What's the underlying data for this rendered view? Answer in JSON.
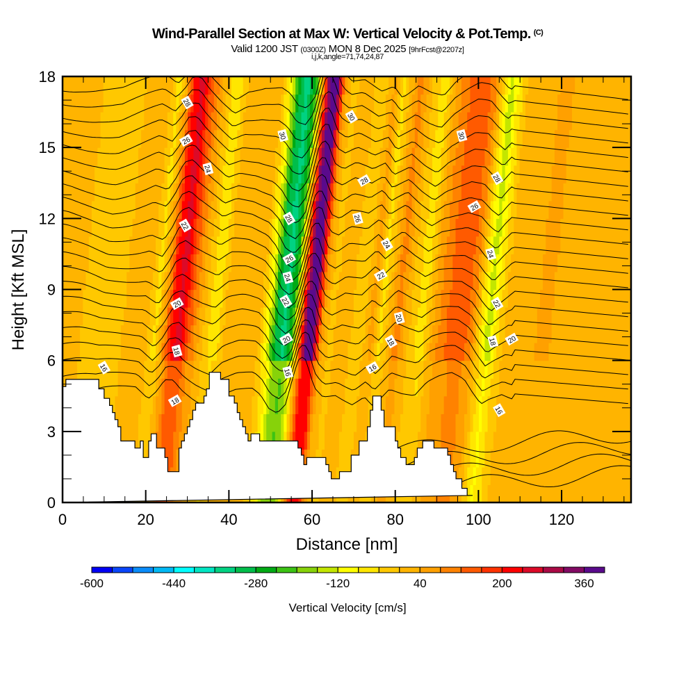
{
  "header": {
    "title": "Wind-Parallel Section at Max W: Vertical Velocity & Pot.Temp.",
    "copyright": "(C)",
    "valid_prefix": "Valid 1200 JST",
    "valid_utc": "(0300Z)",
    "valid_date": "MON 8 Dec 2025",
    "forecast": "[9hrFcst@2207z]",
    "indices": "i,j,k,angle=71,74,24,87"
  },
  "chart_data": {
    "type": "heatmap",
    "title": "Wind-Parallel Section at Max W: Vertical Velocity & Pot.Temp.",
    "xlabel": "Distance [nm]",
    "ylabel": "Height [Kft MSL]",
    "xlim": [
      0,
      136.7
    ],
    "ylim": [
      0,
      18
    ],
    "x_ticks": [
      0,
      20,
      40,
      60,
      80,
      100,
      120
    ],
    "x_minor_step": 5,
    "y_ticks": [
      0,
      3,
      6,
      9,
      12,
      15,
      18
    ],
    "y_minor_step": 1,
    "grid": false,
    "colorbar": {
      "title": "Vertical Velocity [cm/s]",
      "min": -600,
      "step": 40,
      "tick_labels": [
        -600,
        -440,
        -280,
        -120,
        40,
        200,
        360
      ],
      "colors": [
        "#0000f5",
        "#0a46fa",
        "#0a8cfa",
        "#00b9f5",
        "#00ffff",
        "#00e6c3",
        "#00d282",
        "#00be4b",
        "#00aa14",
        "#3cc314",
        "#87d20a",
        "#c3e600",
        "#ffff00",
        "#ffe600",
        "#ffc800",
        "#ffb400",
        "#ffa000",
        "#ff8200",
        "#ff5a00",
        "#ff3200",
        "#ff0000",
        "#dc0a28",
        "#aa0a46",
        "#820a64",
        "#5a0a8c"
      ]
    },
    "vertical_velocity_bands": {
      "description": "approximate w (cm/s) along distance, mid-levels",
      "x_nm": [
        0,
        5,
        10,
        15,
        20,
        23,
        25,
        27,
        29,
        31,
        34,
        37,
        40,
        44,
        48,
        50,
        52,
        54,
        56,
        58,
        59,
        60,
        61,
        62,
        63,
        65,
        68,
        72,
        75,
        77,
        79,
        81,
        84,
        87,
        90,
        93,
        96,
        99,
        101,
        103,
        105,
        108,
        112,
        116,
        120,
        125,
        130,
        136.7
      ],
      "w_cms": [
        20,
        0,
        -40,
        0,
        40,
        -60,
        60,
        230,
        250,
        140,
        20,
        -80,
        20,
        40,
        0,
        -100,
        -280,
        -340,
        -230,
        150,
        340,
        390,
        370,
        200,
        60,
        -20,
        40,
        -40,
        60,
        -60,
        20,
        100,
        0,
        -70,
        60,
        120,
        160,
        100,
        -40,
        -150,
        -60,
        40,
        0,
        60,
        20,
        40,
        0,
        20
      ]
    },
    "theta_contours": {
      "units": "K (offset label)",
      "levels_labeled": [
        16,
        18,
        20,
        22,
        24,
        26,
        28,
        30
      ],
      "label_positions": [
        {
          "label": "28",
          "x": 30.0,
          "y": 16.9
        },
        {
          "label": "26",
          "x": 29.7,
          "y": 15.3
        },
        {
          "label": "24",
          "x": 35.0,
          "y": 14.1
        },
        {
          "label": "22",
          "x": 29.5,
          "y": 11.7
        },
        {
          "label": "20",
          "x": 27.5,
          "y": 8.4
        },
        {
          "label": "18",
          "x": 27.5,
          "y": 6.4
        },
        {
          "label": "16",
          "x": 10.0,
          "y": 5.7
        },
        {
          "label": "18",
          "x": 27.0,
          "y": 4.3
        },
        {
          "label": "30",
          "x": 53.0,
          "y": 15.5
        },
        {
          "label": "28",
          "x": 54.5,
          "y": 12.0
        },
        {
          "label": "26",
          "x": 54.5,
          "y": 10.3
        },
        {
          "label": "24",
          "x": 54.2,
          "y": 9.5
        },
        {
          "label": "22",
          "x": 53.7,
          "y": 8.5
        },
        {
          "label": "20",
          "x": 53.8,
          "y": 6.9
        },
        {
          "label": "16",
          "x": 54.2,
          "y": 5.5
        },
        {
          "label": "30",
          "x": 69.5,
          "y": 16.3
        },
        {
          "label": "28",
          "x": 72.5,
          "y": 13.6
        },
        {
          "label": "26",
          "x": 71.0,
          "y": 12.0
        },
        {
          "label": "24",
          "x": 78.0,
          "y": 10.9
        },
        {
          "label": "22",
          "x": 76.5,
          "y": 9.6
        },
        {
          "label": "20",
          "x": 81.0,
          "y": 7.8
        },
        {
          "label": "18",
          "x": 79.0,
          "y": 6.8
        },
        {
          "label": "16",
          "x": 74.5,
          "y": 5.7
        },
        {
          "label": "30",
          "x": 96.0,
          "y": 15.5
        },
        {
          "label": "28",
          "x": 104.5,
          "y": 13.7
        },
        {
          "label": "26",
          "x": 99.0,
          "y": 12.5
        },
        {
          "label": "24",
          "x": 103.0,
          "y": 10.5
        },
        {
          "label": "22",
          "x": 104.5,
          "y": 8.4
        },
        {
          "label": "20",
          "x": 108.0,
          "y": 6.9
        },
        {
          "label": "18",
          "x": 103.5,
          "y": 6.8
        },
        {
          "label": "16",
          "x": 105.0,
          "y": 3.9
        }
      ]
    },
    "terrain_profile": {
      "description": "ground height (Kft) step profile along distance",
      "x_nm": [
        0,
        0.8,
        0.8,
        3.3,
        3.3,
        8.7,
        8.7,
        10.0,
        10.0,
        11.3,
        11.3,
        12.0,
        12.0,
        12.6,
        12.6,
        13.3,
        13.3,
        14.0,
        14.0,
        17.4,
        17.4,
        18.7,
        18.7,
        19.4,
        19.4,
        20.0,
        20.0,
        20.7,
        20.7,
        21.3,
        21.3,
        22.0,
        22.0,
        22.6,
        22.6,
        23.9,
        23.9,
        24.6,
        24.6,
        25.3,
        25.3,
        25.9,
        25.9,
        26.6,
        26.6,
        28.0,
        28.0,
        28.6,
        28.6,
        29.3,
        29.3,
        30.0,
        30.0,
        30.6,
        30.6,
        31.3,
        31.3,
        32.0,
        32.0,
        32.6,
        32.6,
        34.0,
        34.0,
        34.6,
        34.6,
        35.3,
        35.3,
        36.0,
        36.0,
        38.0,
        38.0,
        40.0,
        40.0,
        41.3,
        41.3,
        42.0,
        42.0,
        42.6,
        42.6,
        43.3,
        43.3,
        44.0,
        44.0,
        44.6,
        44.6,
        45.3,
        45.3,
        46.0,
        46.0,
        47.4,
        47.4,
        49.4,
        49.4,
        51.3,
        51.3,
        52.6,
        52.6,
        54.0,
        54.0,
        55.3,
        55.3,
        56.6,
        56.6,
        57.4,
        57.4,
        58.0,
        58.0,
        58.7,
        58.7,
        61.3,
        61.3,
        63.3,
        63.3,
        64.0,
        64.0,
        64.6,
        64.6,
        65.3,
        65.3,
        66.6,
        66.6,
        67.3,
        67.3,
        69.4,
        69.4,
        71.3,
        71.3,
        73.3,
        73.3,
        74.0,
        74.0,
        74.6,
        74.6,
        75.3,
        75.3,
        76.0,
        76.0,
        76.6,
        76.6,
        77.3,
        77.3,
        80.0,
        80.0,
        80.6,
        80.6,
        81.3,
        81.3,
        82.0,
        82.0,
        82.6,
        82.6,
        84.0,
        84.0,
        84.6,
        84.6,
        85.3,
        85.3,
        86.6,
        86.6,
        88.6,
        88.6,
        89.3,
        89.3,
        92.6,
        92.6,
        93.3,
        93.3,
        94.0,
        94.0,
        94.6,
        94.6,
        95.3,
        95.3,
        96.0,
        96.0,
        97.3,
        97.3,
        98.0,
        98.0,
        98.6,
        98.6,
        99.3,
        99.3,
        100.0,
        100.0,
        103.3,
        103.3,
        136.7
      ],
      "z_kft": [
        4.9,
        4.9,
        5.2,
        5.2,
        5.2,
        5.2,
        4.8,
        4.8,
        4.4,
        4.4,
        4.1,
        4.1,
        3.8,
        3.8,
        3.5,
        3.5,
        3.2,
        3.2,
        2.6,
        2.6,
        2.3,
        2.3,
        2.6,
        2.6,
        1.9,
        1.9,
        1.9,
        1.9,
        2.6,
        2.6,
        2.9,
        2.9,
        2.9,
        2.9,
        2.3,
        2.3,
        2.3,
        2.3,
        1.9,
        1.9,
        1.3,
        1.3,
        1.3,
        1.3,
        1.3,
        1.3,
        2.3,
        2.3,
        2.6,
        2.6,
        2.9,
        2.9,
        3.2,
        3.2,
        3.5,
        3.5,
        3.9,
        3.9,
        4.2,
        4.2,
        4.2,
        4.2,
        4.5,
        4.5,
        4.8,
        4.8,
        5.5,
        5.5,
        5.5,
        5.5,
        5.2,
        5.2,
        4.5,
        4.5,
        4.2,
        4.2,
        3.8,
        3.8,
        3.5,
        3.5,
        3.2,
        3.2,
        2.9,
        2.9,
        2.6,
        2.6,
        2.9,
        2.9,
        2.9,
        2.9,
        2.6,
        2.6,
        2.6,
        2.6,
        2.6,
        2.6,
        2.6,
        2.6,
        2.6,
        2.6,
        2.6,
        2.6,
        2.3,
        2.3,
        2.0,
        2.0,
        1.6,
        1.6,
        1.9,
        1.9,
        1.9,
        1.9,
        1.6,
        1.6,
        1.3,
        1.3,
        1.0,
        1.0,
        1.0,
        1.0,
        1.3,
        1.3,
        1.3,
        1.3,
        2.0,
        2.0,
        2.6,
        2.6,
        3.2,
        3.2,
        3.9,
        3.9,
        4.5,
        4.5,
        4.5,
        4.5,
        4.5,
        4.5,
        3.9,
        3.9,
        3.2,
        3.2,
        2.6,
        2.6,
        2.3,
        2.3,
        1.9,
        1.9,
        1.9,
        1.9,
        1.6,
        1.6,
        1.6,
        1.6,
        1.9,
        1.9,
        2.3,
        2.3,
        2.6,
        2.6,
        2.6,
        2.6,
        2.3,
        2.3,
        2.0,
        2.0,
        1.6,
        1.6,
        1.3,
        1.3,
        1.0,
        1.0,
        1.0,
        1.0,
        0.6,
        0.6,
        0.3,
        0.3,
        0.3,
        0.3
      ]
    }
  }
}
